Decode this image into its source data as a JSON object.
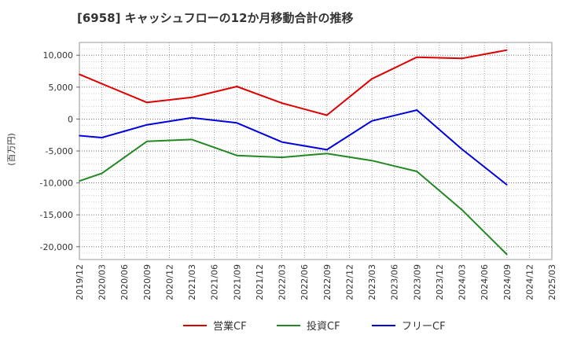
{
  "chart_data": {
    "type": "line",
    "title": "[6958]  キャッシュフローの12か月移動合計の推移",
    "ylabel": "(百万円)",
    "xlabel": "",
    "ylim": [
      -22000,
      12000
    ],
    "yticks": [
      10000,
      5000,
      0,
      -5000,
      -10000,
      -15000,
      -20000
    ],
    "ytick_labels": [
      "10,000",
      "5,000",
      "0",
      "-5,000",
      "-10,000",
      "-15,000",
      "-20,000"
    ],
    "categories": [
      "2019/12",
      "2020/03",
      "2020/06",
      "2020/09",
      "2020/12",
      "2021/03",
      "2021/06",
      "2021/09",
      "2021/12",
      "2022/03",
      "2022/06",
      "2022/09",
      "2022/12",
      "2023/03",
      "2023/06",
      "2023/09",
      "2023/12",
      "2024/03",
      "2024/06",
      "2024/09",
      "2024/12",
      "2025/03"
    ],
    "grid": true,
    "legend_position": "bottom",
    "series": [
      {
        "name": "営業CF",
        "color": "#dd0000",
        "values": [
          7000,
          null,
          null,
          2600,
          null,
          3400,
          null,
          5100,
          null,
          2500,
          null,
          600,
          null,
          6300,
          null,
          9700,
          null,
          9500,
          null,
          10800,
          null,
          null
        ]
      },
      {
        "name": "投資CF",
        "color": "#228822",
        "values": [
          -9700,
          -8500,
          null,
          -3500,
          null,
          -3200,
          null,
          -5700,
          null,
          -6000,
          null,
          -5400,
          null,
          -6500,
          null,
          -8200,
          null,
          -14200,
          null,
          -21200,
          null,
          null
        ]
      },
      {
        "name": "フリーCF",
        "color": "#0000dd",
        "values": [
          -2600,
          -2900,
          null,
          -900,
          null,
          200,
          null,
          -600,
          null,
          -3600,
          null,
          -4800,
          null,
          -300,
          null,
          1400,
          null,
          -4700,
          null,
          -10300,
          null,
          null
        ]
      }
    ]
  }
}
